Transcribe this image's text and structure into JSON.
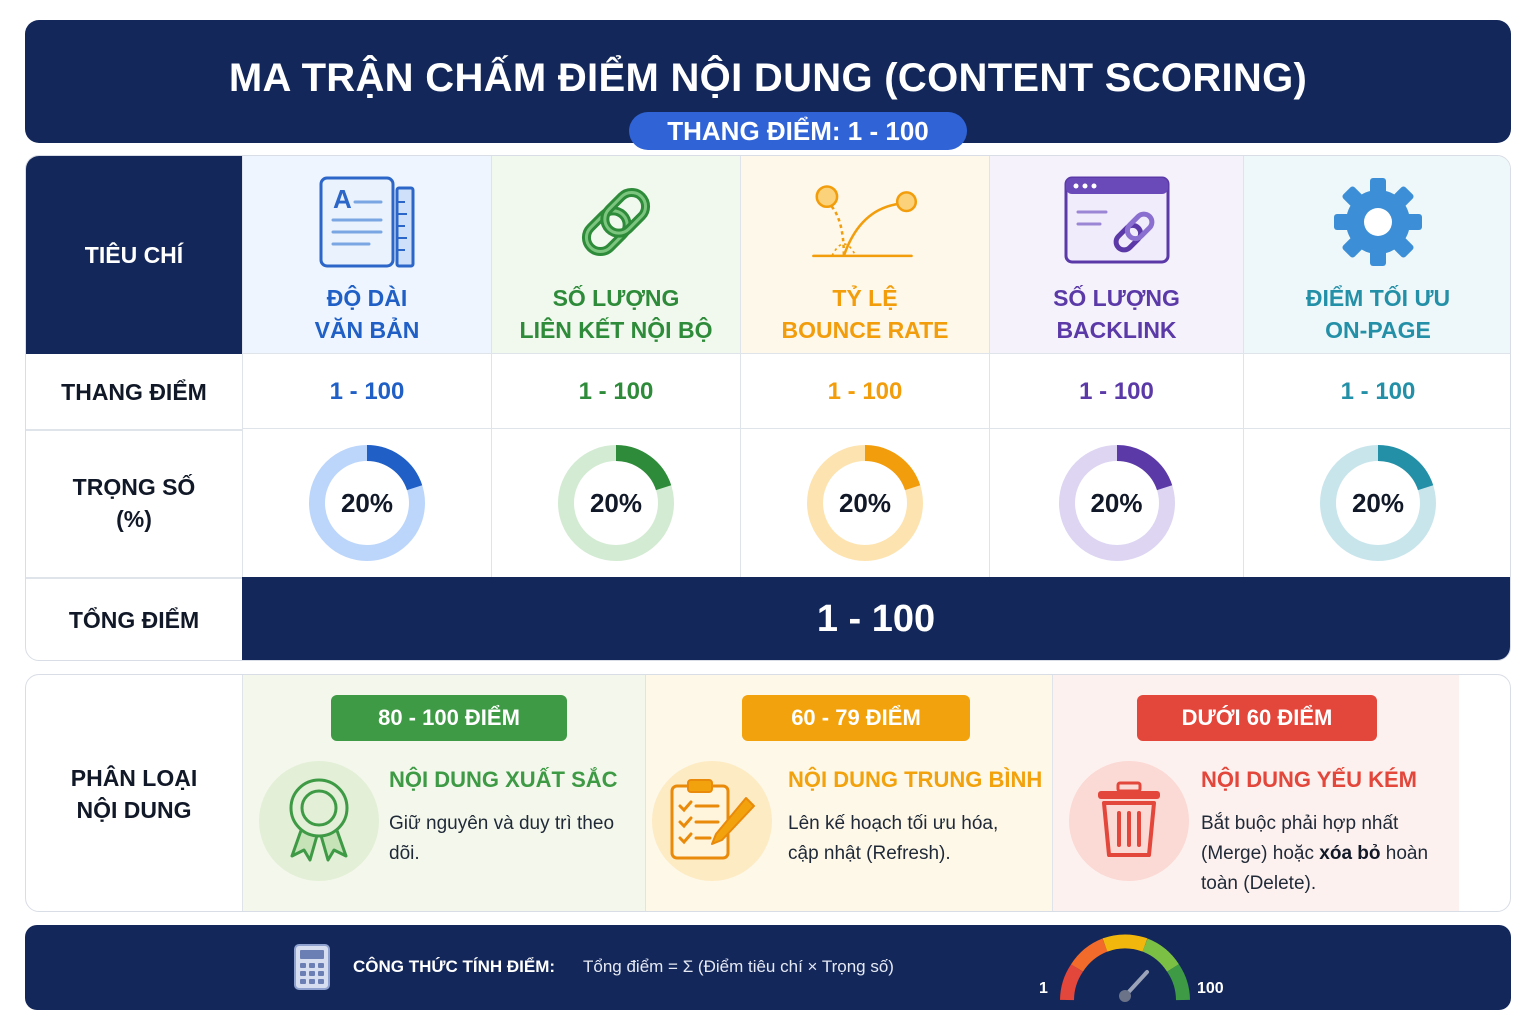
{
  "header": {
    "title": "MA TRẬN CHẤM ĐIỂM NỘI DUNG (CONTENT SCORING)",
    "scale_pill": "THANG ĐIỂM: 1 - 100"
  },
  "matrix": {
    "row_labels": {
      "criteria": "TIÊU CHÍ",
      "scale": "THANG ĐIỂM",
      "weight_line1": "TRỌNG SỐ",
      "weight_line2": "(%)",
      "total": "TỔNG ĐIỂM"
    },
    "criteria": [
      {
        "name_line1": "ĐỘ DÀI",
        "name_line2": "VĂN BẢN",
        "scale": "1 - 100",
        "weight_label": "20%",
        "weight_value": 20,
        "icon": "document-ruler-icon",
        "color": "#1f5fc6",
        "track": "#bcd6fb",
        "bg": "#eef5fe"
      },
      {
        "name_line1": "SỐ LƯỢNG",
        "name_line2": "LIÊN KẾT NỘI BỘ",
        "scale": "1 - 100",
        "weight_label": "20%",
        "weight_value": 20,
        "icon": "chain-link-icon",
        "color": "#2e8b3a",
        "track": "#d4ebd3",
        "bg": "#f1f8ee"
      },
      {
        "name_line1": "TỶ LỆ",
        "name_line2": "BOUNCE RATE",
        "scale": "1 - 100",
        "weight_label": "20%",
        "weight_value": 20,
        "icon": "bouncing-ball-icon",
        "color": "#f29d0c",
        "track": "#fde3b0",
        "bg": "#fef8ea"
      },
      {
        "name_line1": "SỐ LƯỢNG",
        "name_line2": "BACKLINK",
        "scale": "1 - 100",
        "weight_label": "20%",
        "weight_value": 20,
        "icon": "browser-link-icon",
        "color": "#5b3aa8",
        "track": "#ddd5f2",
        "bg": "#f5f2fc"
      },
      {
        "name_line1": "ĐIỂM TỐI ƯU",
        "name_line2": "ON-PAGE",
        "scale": "1 - 100",
        "weight_label": "20%",
        "weight_value": 20,
        "icon": "gear-icon",
        "color": "#2490a8",
        "track": "#c9e5ec",
        "bg": "#eef7f9"
      }
    ],
    "total_value": "1 - 100"
  },
  "classification": {
    "label_line1": "PHÂN LOẠI",
    "label_line2": "NỘI DUNG",
    "categories": [
      {
        "badge": "80 - 100 ĐIỂM",
        "title": "NỘI DUNG XUẤT SẮC",
        "desc": "Giữ nguyên và duy trì theo dõi.",
        "icon": "award-ribbon-icon",
        "color": "#3e9a45",
        "bg": "#f4f8ec",
        "circle": "#e3efd7"
      },
      {
        "badge": "60 - 79 ĐIỂM",
        "title": "NỘI DUNG TRUNG BÌNH",
        "desc": "Lên kế hoạch tối ưu hóa, cập nhật (Refresh).",
        "icon": "clipboard-checklist-icon",
        "color": "#f2a20c",
        "bg": "#fef8e8",
        "circle": "#fdebc4"
      },
      {
        "badge": "DƯỚI 60 ĐIỂM",
        "title": "NỘI DUNG YẾU KÉM",
        "desc_part1": "Bắt buộc phải hợp nhất (Merge) hoặc ",
        "desc_bold": "xóa bỏ",
        "desc_part2": " hoàn toàn (Delete).",
        "icon": "trash-bin-icon",
        "color": "#e3463a",
        "bg": "#fdf1ef",
        "circle": "#fbd9d4"
      }
    ]
  },
  "footer": {
    "formula_label": "CÔNG THỨC TÍNH ĐIỂM:",
    "formula": "Tổng điểm = Σ (Điểm tiêu chí × Trọng số)",
    "gauge_min": "1",
    "gauge_max": "100",
    "icon": "calculator-icon"
  }
}
